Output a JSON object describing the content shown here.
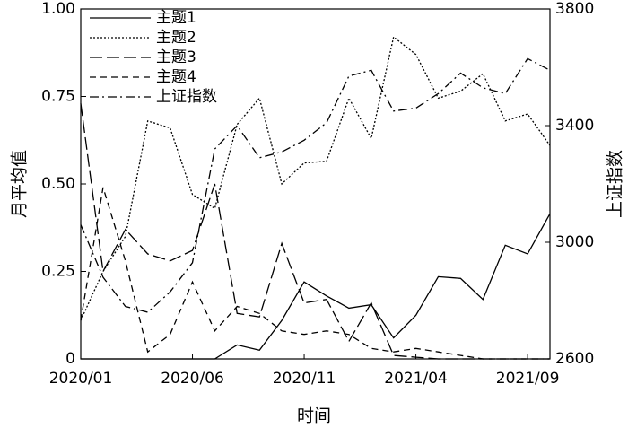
{
  "chart_data": {
    "type": "line",
    "x_label": "时间",
    "y_label": "月平均值",
    "y2_label": "上证指数",
    "categories": [
      "2020/01",
      null,
      null,
      null,
      null,
      "2020/06",
      null,
      null,
      null,
      null,
      "2020/11",
      null,
      null,
      null,
      null,
      "2021/04",
      null,
      null,
      null,
      null,
      "2021/09",
      null
    ],
    "series": [
      {
        "name": "主题1",
        "color": "#000000",
        "dash": "solid",
        "values": [
          0,
          0,
          0,
          0,
          0,
          0,
          0,
          0.04,
          0.025,
          0.11,
          0.22,
          0.18,
          0.145,
          0.155,
          0.06,
          0.125,
          0.235,
          0.23,
          0.17,
          0.325,
          0.3,
          0.415
        ]
      },
      {
        "name": "主题2",
        "color": "#000000",
        "dash": "dotted",
        "values": [
          0.11,
          0.25,
          0.35,
          0.68,
          0.66,
          0.47,
          0.43,
          0.67,
          0.745,
          0.5,
          0.56,
          0.565,
          0.745,
          0.63,
          0.92,
          0.87,
          0.745,
          0.765,
          0.815,
          0.68,
          0.7,
          0.61
        ]
      },
      {
        "name": "主题3",
        "color": "#000000",
        "dash": "long-dash",
        "values": [
          0.73,
          0.25,
          0.37,
          0.3,
          0.28,
          0.31,
          0.5,
          0.13,
          0.12,
          0.33,
          0.16,
          0.17,
          0.05,
          0.16,
          0.01,
          0.005,
          0,
          0,
          0,
          0,
          0,
          0
        ]
      },
      {
        "name": "主题4",
        "color": "#000000",
        "dash": "dashed",
        "values": [
          0.11,
          0.49,
          0.28,
          0.02,
          0.07,
          0.22,
          0.08,
          0.15,
          0.13,
          0.08,
          0.07,
          0.08,
          0.07,
          0.03,
          0.02,
          0.03,
          0.02,
          0.01,
          0,
          0,
          0,
          0
        ]
      },
      {
        "name": "上证指数",
        "color": "#000000",
        "dash": "dash-dot",
        "axis": "y2",
        "values": [
          3060,
          2880,
          2780,
          2760,
          2830,
          2930,
          3320,
          3400,
          3290,
          3310,
          3350,
          3410,
          3570,
          3590,
          3450,
          3460,
          3510,
          3580,
          3530,
          3510,
          3630,
          3590
        ]
      }
    ],
    "ylim": [
      0,
      1
    ],
    "yticks": [
      0,
      0.25,
      {
        "value": 0.5,
        "label": "0.50"
      },
      0.75,
      {
        "value": 1,
        "label": "1.00"
      }
    ],
    "y2lim": [
      2600,
      3800
    ],
    "y2ticks": [
      2600,
      3000,
      3400,
      3800
    ],
    "legend": "upper left"
  }
}
